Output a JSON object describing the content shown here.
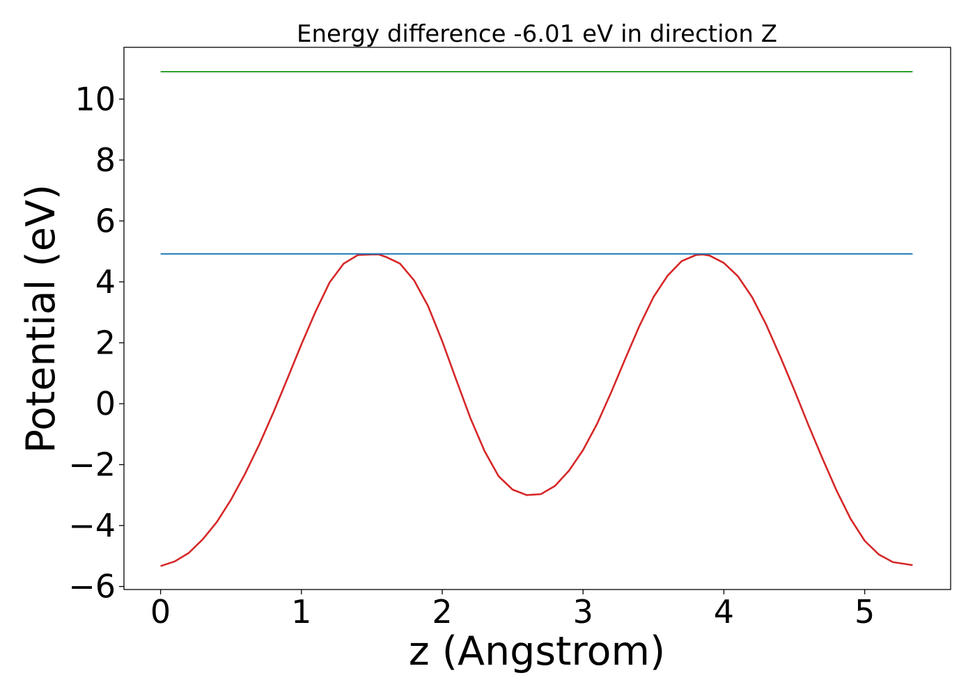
{
  "chart_data": {
    "type": "line",
    "title": "Energy difference -6.01 eV in direction Z",
    "xlabel": "z (Angstrom)",
    "ylabel": "Potential (eV)",
    "xlim": [
      -0.26,
      5.61
    ],
    "ylim": [
      -6.1,
      11.7
    ],
    "xticks": [
      0,
      1,
      2,
      3,
      4,
      5
    ],
    "xtick_labels": [
      "0",
      "1",
      "2",
      "3",
      "4",
      "5"
    ],
    "yticks": [
      -6,
      -4,
      -2,
      0,
      2,
      4,
      6,
      8,
      10
    ],
    "ytick_labels": [
      "−6",
      "−4",
      "−2",
      "0",
      "2",
      "4",
      "6",
      "8",
      "10"
    ],
    "grid": false,
    "series": [
      {
        "role": "potential",
        "color": "#d62728",
        "x": [
          0,
          0.1,
          0.2,
          0.3,
          0.4,
          0.5,
          0.6,
          0.7,
          0.8,
          0.9,
          1.0,
          1.1,
          1.2,
          1.3,
          1.4,
          1.5,
          1.55,
          1.6,
          1.7,
          1.8,
          1.9,
          2.0,
          2.1,
          2.2,
          2.3,
          2.4,
          2.5,
          2.6,
          2.7,
          2.8,
          2.9,
          3.0,
          3.1,
          3.2,
          3.3,
          3.4,
          3.5,
          3.6,
          3.7,
          3.8,
          3.85,
          3.9,
          4.0,
          4.1,
          4.2,
          4.3,
          4.4,
          4.5,
          4.6,
          4.7,
          4.8,
          4.9,
          5.0,
          5.1,
          5.2,
          5.34
        ],
        "y": [
          -5.33,
          -5.18,
          -4.9,
          -4.45,
          -3.88,
          -3.15,
          -2.3,
          -1.35,
          -0.3,
          0.82,
          1.95,
          3.02,
          3.98,
          4.6,
          4.88,
          4.9,
          4.9,
          4.82,
          4.6,
          4.05,
          3.2,
          2.05,
          0.78,
          -0.47,
          -1.55,
          -2.38,
          -2.82,
          -3.0,
          -2.97,
          -2.7,
          -2.2,
          -1.52,
          -0.66,
          0.38,
          1.48,
          2.55,
          3.5,
          4.2,
          4.68,
          4.88,
          4.9,
          4.86,
          4.62,
          4.18,
          3.5,
          2.6,
          1.55,
          0.45,
          -0.7,
          -1.8,
          -2.85,
          -3.78,
          -4.5,
          -4.95,
          -5.2,
          -5.3
        ]
      },
      {
        "role": "reference-level",
        "color": "#1f77b4",
        "x": [
          0,
          5.34
        ],
        "y": [
          4.92,
          4.92
        ]
      },
      {
        "role": "reference-level",
        "color": "#2ca02c",
        "x": [
          0,
          5.34
        ],
        "y": [
          10.9,
          10.9
        ]
      }
    ]
  }
}
